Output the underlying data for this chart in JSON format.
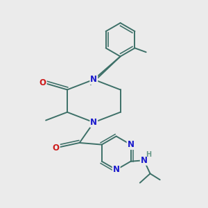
{
  "bg_color": "#ebebeb",
  "bond_color": "#3d7068",
  "n_color": "#1a1acc",
  "o_color": "#cc1a1a",
  "h_color": "#6a9a8a",
  "line_width": 1.4,
  "font_size": 8.5,
  "figsize": [
    3.0,
    3.0
  ],
  "dpi": 100,
  "xlim": [
    0,
    10
  ],
  "ylim": [
    0,
    10
  ]
}
